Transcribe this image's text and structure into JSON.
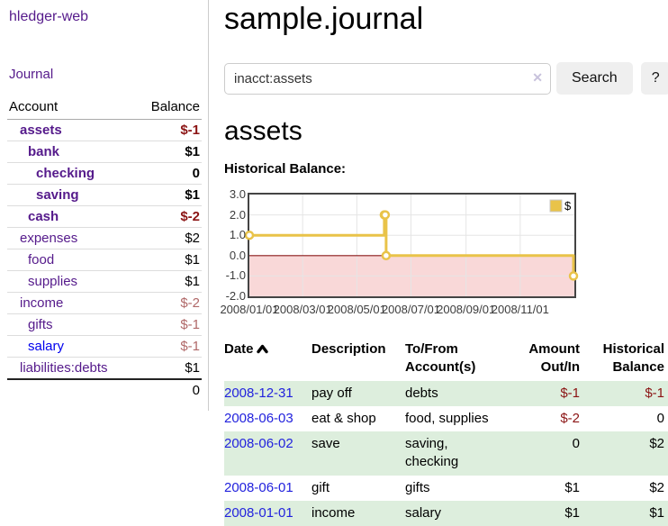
{
  "app": {
    "brand": "hledger-web",
    "nav_journal": "Journal"
  },
  "sidebar": {
    "columns": {
      "account": "Account",
      "balance": "Balance"
    },
    "rows": [
      {
        "account": "assets",
        "balance": "$-1",
        "indent": 1,
        "bold": true,
        "neg": "strong",
        "link": "purple"
      },
      {
        "account": "bank",
        "balance": "$1",
        "indent": 2,
        "bold": true,
        "neg": "none",
        "link": "purple"
      },
      {
        "account": "checking",
        "balance": "0",
        "indent": 3,
        "bold": true,
        "neg": "none",
        "link": "purple"
      },
      {
        "account": "saving",
        "balance": "$1",
        "indent": 3,
        "bold": true,
        "neg": "none",
        "link": "purple"
      },
      {
        "account": "cash",
        "balance": "$-2",
        "indent": 2,
        "bold": true,
        "neg": "strong",
        "link": "purple"
      },
      {
        "account": "expenses",
        "balance": "$2",
        "indent": 1,
        "bold": false,
        "neg": "none",
        "link": "purple"
      },
      {
        "account": "food",
        "balance": "$1",
        "indent": 2,
        "bold": false,
        "neg": "none",
        "link": "purple"
      },
      {
        "account": "supplies",
        "balance": "$1",
        "indent": 2,
        "bold": false,
        "neg": "none",
        "link": "purple"
      },
      {
        "account": "income",
        "balance": "$-2",
        "indent": 1,
        "bold": false,
        "neg": "soft",
        "link": "purple"
      },
      {
        "account": "gifts",
        "balance": "$-1",
        "indent": 2,
        "bold": false,
        "neg": "soft",
        "link": "purple"
      },
      {
        "account": "salary",
        "balance": "$-1",
        "indent": 2,
        "bold": false,
        "neg": "soft",
        "link": "blue"
      },
      {
        "account": "liabilities:debts",
        "balance": "$1",
        "indent": 1,
        "bold": false,
        "neg": "none",
        "link": "purple"
      }
    ],
    "total": "0"
  },
  "header": {
    "title": "sample.journal"
  },
  "search": {
    "value": "inacct:assets",
    "clear_icon": "✕",
    "button_label": "Search",
    "help_label": "?"
  },
  "account_page": {
    "heading": "assets",
    "chart_label": "Historical Balance:"
  },
  "chart_data": {
    "type": "line",
    "step": true,
    "title": "Historical Balance:",
    "series": [
      {
        "name": "$",
        "color": "#E9C349",
        "points": [
          [
            "2008-01-01",
            1
          ],
          [
            "2008-06-01",
            2
          ],
          [
            "2008-06-02",
            2
          ],
          [
            "2008-06-03",
            0
          ],
          [
            "2008-12-31",
            -1
          ]
        ]
      }
    ],
    "xlim": [
      "2008-01-01",
      "2009-01-01"
    ],
    "ylim": [
      -2,
      3
    ],
    "x_ticks": [
      "2008/01/01",
      "2008/03/01",
      "2008/05/01",
      "2008/07/01",
      "2008/09/01",
      "2008/11/01"
    ],
    "y_ticks": [
      "3.0",
      "2.0",
      "1.0",
      "0.0",
      "-1.0",
      "-2.0"
    ],
    "legend": {
      "label": "$",
      "position": "top-right"
    },
    "grid": true,
    "colors": {
      "negative_region": "#F9D8D8",
      "zero_line": "#8B1A1A",
      "gridline": "#E5E5E5",
      "plot_border": "#444444"
    }
  },
  "register": {
    "headers": {
      "date": "Date",
      "description": "Description",
      "accounts": "To/From Account(s)",
      "amount": "Amount Out/In",
      "balance": "Historical Balance"
    },
    "rows": [
      {
        "date": "2008-12-31",
        "description": "pay off",
        "accounts": "debts",
        "amount": "$-1",
        "amount_neg": true,
        "balance": "$-1",
        "balance_neg": true
      },
      {
        "date": "2008-06-03",
        "description": "eat & shop",
        "accounts": "food, supplies",
        "amount": "$-2",
        "amount_neg": true,
        "balance": "0",
        "balance_neg": false
      },
      {
        "date": "2008-06-02",
        "description": "save",
        "accounts": "saving, checking",
        "amount": "0",
        "amount_neg": false,
        "balance": "$2",
        "balance_neg": false
      },
      {
        "date": "2008-06-01",
        "description": "gift",
        "accounts": "gifts",
        "amount": "$1",
        "amount_neg": false,
        "balance": "$2",
        "balance_neg": false
      },
      {
        "date": "2008-01-01",
        "description": "income",
        "accounts": "salary",
        "amount": "$1",
        "amount_neg": false,
        "balance": "$1",
        "balance_neg": false
      }
    ]
  }
}
